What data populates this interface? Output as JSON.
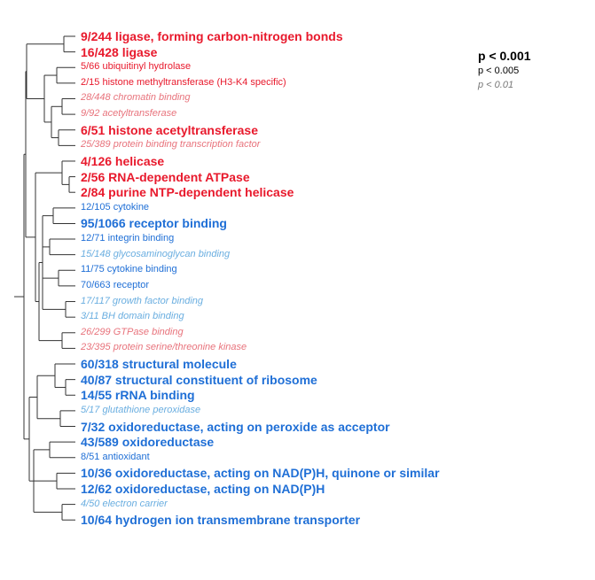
{
  "colors": {
    "red_strong": "#e8192c",
    "red_light": "#e8737c",
    "blue_strong": "#1f6fd6",
    "blue_light": "#6aaee0",
    "tree_line": "#333333"
  },
  "terms": [
    {
      "text": "9/244 ligase, forming carbon-nitrogen bonds",
      "group": "red",
      "significance": "p<0.001"
    },
    {
      "text": "16/428 ligase",
      "group": "red",
      "significance": "p<0.001"
    },
    {
      "text": "5/66 ubiquitinyl hydrolase",
      "group": "red",
      "significance": "p<0.005"
    },
    {
      "text": "2/15 histone methyltransferase (H3-K4 specific)",
      "group": "red",
      "significance": "p<0.005"
    },
    {
      "text": "28/448 chromatin binding",
      "group": "red",
      "significance": "p<0.01"
    },
    {
      "text": "9/92 acetyltransferase",
      "group": "red",
      "significance": "p<0.01"
    },
    {
      "text": "6/51 histone acetyltransferase",
      "group": "red",
      "significance": "p<0.001"
    },
    {
      "text": "25/389 protein binding transcription factor",
      "group": "red",
      "significance": "p<0.01"
    },
    {
      "text": "4/126 helicase",
      "group": "red",
      "significance": "p<0.001"
    },
    {
      "text": "2/56 RNA-dependent ATPase",
      "group": "red",
      "significance": "p<0.001"
    },
    {
      "text": "2/84 purine NTP-dependent helicase",
      "group": "red",
      "significance": "p<0.001"
    },
    {
      "text": "12/105 cytokine",
      "group": "blue",
      "significance": "p<0.005"
    },
    {
      "text": "95/1066 receptor binding",
      "group": "blue",
      "significance": "p<0.001"
    },
    {
      "text": "12/71 integrin binding",
      "group": "blue",
      "significance": "p<0.005"
    },
    {
      "text": "15/148 glycosaminoglycan binding",
      "group": "blue",
      "significance": "p<0.01"
    },
    {
      "text": "11/75 cytokine binding",
      "group": "blue",
      "significance": "p<0.005"
    },
    {
      "text": "70/663 receptor",
      "group": "blue",
      "significance": "p<0.005"
    },
    {
      "text": "17/117 growth factor binding",
      "group": "blue",
      "significance": "p<0.01"
    },
    {
      "text": "3/11 BH domain binding",
      "group": "blue",
      "significance": "p<0.01"
    },
    {
      "text": "26/299 GTPase binding",
      "group": "red",
      "significance": "p<0.01"
    },
    {
      "text": "23/395 protein serine/threonine kinase",
      "group": "red",
      "significance": "p<0.01"
    },
    {
      "text": "60/318 structural molecule",
      "group": "blue",
      "significance": "p<0.001"
    },
    {
      "text": "40/87 structural constituent of ribosome",
      "group": "blue",
      "significance": "p<0.001"
    },
    {
      "text": "14/55 rRNA binding",
      "group": "blue",
      "significance": "p<0.001"
    },
    {
      "text": "5/17 glutathione peroxidase",
      "group": "blue",
      "significance": "p<0.01"
    },
    {
      "text": "7/32 oxidoreductase, acting on peroxide as acceptor",
      "group": "blue",
      "significance": "p<0.001"
    },
    {
      "text": "43/589 oxidoreductase",
      "group": "blue",
      "significance": "p<0.001"
    },
    {
      "text": "8/51 antioxidant",
      "group": "blue",
      "significance": "p<0.005"
    },
    {
      "text": "10/36 oxidoreductase, acting on NAD(P)H, quinone or similar",
      "group": "blue",
      "significance": "p<0.001"
    },
    {
      "text": "12/62 oxidoreductase, acting on NAD(P)H",
      "group": "blue",
      "significance": "p<0.001"
    },
    {
      "text": "4/50 electron carrier",
      "group": "blue",
      "significance": "p<0.01"
    },
    {
      "text": "10/64 hydrogen ion transmembrane transporter",
      "group": "blue",
      "significance": "p<0.001"
    }
  ],
  "legend": [
    {
      "text": "p < 0.001",
      "style": "bold"
    },
    {
      "text": "p < 0.005",
      "style": "normal"
    },
    {
      "text": "p < 0.01",
      "style": "italic"
    }
  ]
}
